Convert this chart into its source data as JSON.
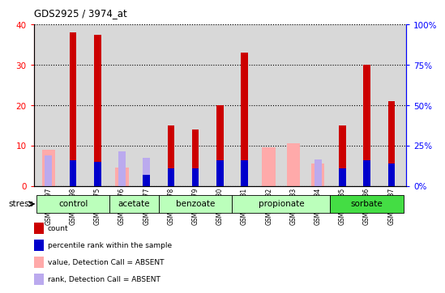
{
  "title": "GDS2925 / 3974_at",
  "samples": [
    "GSM137497",
    "GSM137498",
    "GSM137675",
    "GSM137676",
    "GSM137677",
    "GSM137678",
    "GSM137679",
    "GSM137680",
    "GSM137681",
    "GSM137682",
    "GSM137683",
    "GSM137684",
    "GSM137685",
    "GSM137686",
    "GSM137687"
  ],
  "group_spans": [
    {
      "name": "control",
      "start": 0,
      "end": 2,
      "color": "#bbffbb"
    },
    {
      "name": "acetate",
      "start": 3,
      "end": 4,
      "color": "#bbffbb"
    },
    {
      "name": "benzoate",
      "start": 5,
      "end": 7,
      "color": "#bbffbb"
    },
    {
      "name": "propionate",
      "start": 8,
      "end": 11,
      "color": "#bbffbb"
    },
    {
      "name": "sorbate",
      "start": 12,
      "end": 14,
      "color": "#44dd44"
    }
  ],
  "count_values": [
    0,
    38,
    37.5,
    0,
    0,
    15,
    14,
    20,
    33,
    0,
    0,
    0,
    15,
    30,
    21
  ],
  "pct_rank_values": [
    0,
    16,
    15,
    0,
    7,
    11,
    11,
    16,
    16,
    0,
    0,
    0,
    11,
    16,
    14
  ],
  "absent_value": [
    9,
    0,
    0,
    4.5,
    0,
    0,
    0,
    0,
    0,
    9.5,
    10.5,
    5.5,
    0,
    0,
    0
  ],
  "absent_rank": [
    7.5,
    0,
    0,
    8.5,
    7,
    0,
    0,
    0,
    0,
    0,
    0,
    6.5,
    0,
    0,
    0
  ],
  "count_color": "#cc0000",
  "pct_rank_color": "#0000cc",
  "absent_val_color": "#ffaaaa",
  "absent_rank_color": "#bbaaee",
  "ylim_left": [
    0,
    40
  ],
  "ylim_right": [
    0,
    100
  ],
  "yticks_left": [
    0,
    10,
    20,
    30,
    40
  ],
  "yticks_right": [
    0,
    25,
    50,
    75,
    100
  ],
  "ytick_labels_left": [
    "0",
    "10",
    "20",
    "30",
    "40"
  ],
  "ytick_labels_right": [
    "0%",
    "25%",
    "50%",
    "75%",
    "100%"
  ],
  "bg_color": "#d8d8d8",
  "legend_items": [
    {
      "color": "#cc0000",
      "label": "count"
    },
    {
      "color": "#0000cc",
      "label": "percentile rank within the sample"
    },
    {
      "color": "#ffaaaa",
      "label": "value, Detection Call = ABSENT"
    },
    {
      "color": "#bbaaee",
      "label": "rank, Detection Call = ABSENT"
    }
  ]
}
